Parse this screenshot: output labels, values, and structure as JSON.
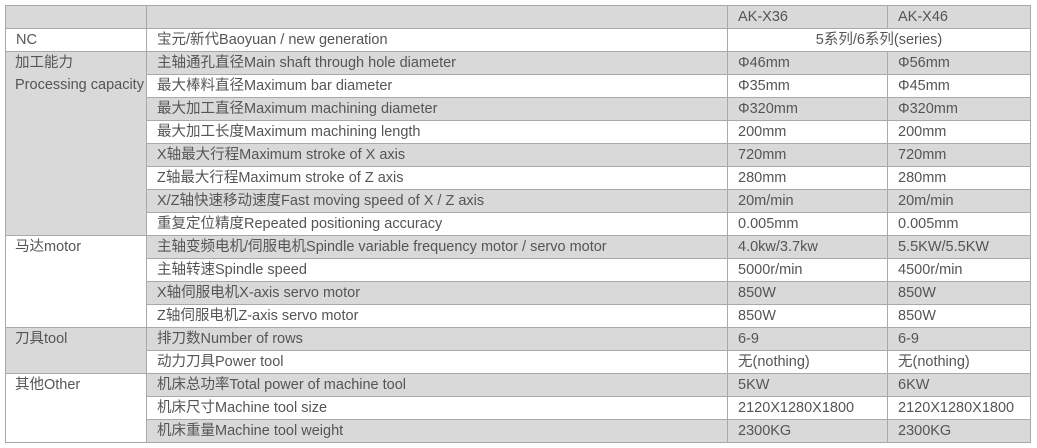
{
  "header": {
    "models": [
      "AK-X36",
      "AK-X46"
    ]
  },
  "nc": {
    "category": "NC",
    "item": "宝元/新代Baoyuan / new generation",
    "value": "5系列/6系列(series)"
  },
  "groups": [
    {
      "category_cn": "加工能力",
      "category_en": "Processing capacity",
      "rows": [
        {
          "item": "主轴通孔直径Main shaft through hole diameter",
          "x36": "Φ46mm",
          "x46": "Φ56mm"
        },
        {
          "item": "最大棒料直径Maximum bar diameter",
          "x36": "Φ35mm",
          "x46": "Φ45mm"
        },
        {
          "item": "最大加工直径Maximum machining diameter",
          "x36": "Φ320mm",
          "x46": "Φ320mm"
        },
        {
          "item": "最大加工长度Maximum machining length",
          "x36": "200mm",
          "x46": "200mm"
        },
        {
          "item": "X轴最大行程Maximum stroke of X axis",
          "x36": "720mm",
          "x46": "720mm"
        },
        {
          "item": "Z轴最大行程Maximum stroke of Z axis",
          "x36": "280mm",
          "x46": "280mm"
        },
        {
          "item": "X/Z轴快速移动速度Fast moving speed of X / Z axis",
          "x36": "20m/min",
          "x46": "20m/min"
        },
        {
          "item": "重复定位精度Repeated positioning accuracy",
          "x36": "0.005mm",
          "x46": "0.005mm"
        }
      ]
    },
    {
      "category_cn": "马达motor",
      "category_en": "",
      "rows": [
        {
          "item": "主轴变频电机/伺服电机Spindle variable frequency motor / servo motor",
          "x36": "4.0kw/3.7kw",
          "x46": "5.5KW/5.5KW"
        },
        {
          "item": "主轴转速Spindle speed",
          "x36": "5000r/min",
          "x46": "4500r/min"
        },
        {
          "item": "X轴伺服电机X-axis servo motor",
          "x36": "850W",
          "x46": "850W"
        },
        {
          "item": "Z轴伺服电机Z-axis servo motor",
          "x36": "850W",
          "x46": "850W"
        }
      ]
    },
    {
      "category_cn": "刀具tool",
      "category_en": "",
      "rows": [
        {
          "item": "排刀数Number of rows",
          "x36": "6-9",
          "x46": "6-9"
        },
        {
          "item": "动力刀具Power tool",
          "x36": "无(nothing)",
          "x46": "无(nothing)"
        }
      ]
    },
    {
      "category_cn": "其他Other",
      "category_en": "",
      "rows": [
        {
          "item": "机床总功率Total power of machine tool",
          "x36": "5KW",
          "x46": "6KW"
        },
        {
          "item": "机床尺寸Machine tool size",
          "x36": "2120X1280X1800",
          "x46": "2120X1280X1800"
        },
        {
          "item": "机床重量Machine tool weight",
          "x36": "2300KG",
          "x46": "2300KG"
        }
      ]
    }
  ],
  "colors": {
    "gray_row": "#d9d9d9",
    "border": "#a9a9a9",
    "text": "#555555"
  }
}
